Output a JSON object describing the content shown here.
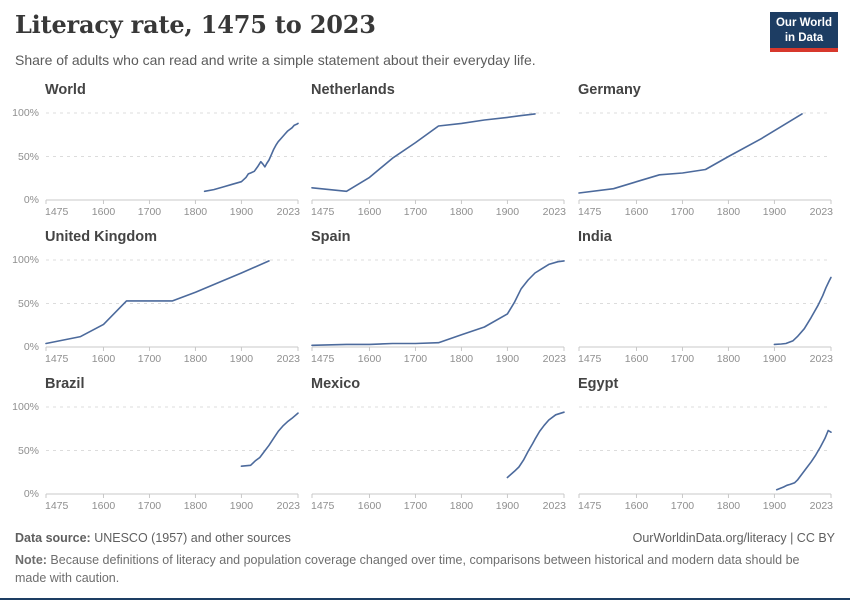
{
  "header": {
    "title": "Literacy rate, 1475 to 2023",
    "subtitle": "Share of adults who can read and write a simple statement about their everyday life.",
    "logo": {
      "line1": "Our World",
      "line2": "in Data"
    }
  },
  "colors": {
    "line": "#4c6a9c",
    "gridline": "#dcdcdc",
    "axis": "#c8c8c8",
    "tick_text": "#8f8f8f",
    "logo_background": "#1d3d63",
    "logo_accent": "#d7382c",
    "bottom_bar": "#1d3d63"
  },
  "chart_data": {
    "type": "line",
    "title": "Literacy rate, 1475 to 2023",
    "x_range": [
      1475,
      2023
    ],
    "x_ticks": [
      1475,
      1600,
      1700,
      1800,
      1900,
      2023
    ],
    "y_range": [
      0,
      100
    ],
    "y_ticks": [
      0,
      50,
      100
    ],
    "y_tick_format": "percent",
    "grid": "horizontal dashed gridlines at 50% and 100%, solid axis at 0%",
    "legend": "none (one facet per country)",
    "units": "[year, literacy rate %]",
    "series": [
      {
        "name": "World",
        "points": [
          [
            1820,
            10
          ],
          [
            1840,
            12
          ],
          [
            1860,
            15
          ],
          [
            1880,
            18
          ],
          [
            1900,
            21
          ],
          [
            1910,
            26
          ],
          [
            1915,
            30
          ],
          [
            1920,
            31
          ],
          [
            1928,
            33
          ],
          [
            1935,
            38
          ],
          [
            1942,
            44
          ],
          [
            1947,
            41
          ],
          [
            1951,
            38
          ],
          [
            1955,
            42
          ],
          [
            1960,
            46
          ],
          [
            1965,
            52
          ],
          [
            1970,
            58
          ],
          [
            1975,
            63
          ],
          [
            1980,
            67
          ],
          [
            1985,
            70
          ],
          [
            1990,
            73
          ],
          [
            1995,
            76
          ],
          [
            2000,
            79
          ],
          [
            2005,
            81
          ],
          [
            2010,
            83
          ],
          [
            2015,
            86
          ],
          [
            2020,
            87
          ],
          [
            2023,
            88
          ]
        ]
      },
      {
        "name": "Netherlands",
        "points": [
          [
            1475,
            14
          ],
          [
            1550,
            10
          ],
          [
            1600,
            26
          ],
          [
            1650,
            48
          ],
          [
            1700,
            66
          ],
          [
            1750,
            85
          ],
          [
            1800,
            88
          ],
          [
            1850,
            92
          ],
          [
            1900,
            95
          ],
          [
            1930,
            97
          ],
          [
            1960,
            99
          ]
        ]
      },
      {
        "name": "Germany",
        "points": [
          [
            1475,
            8
          ],
          [
            1550,
            13
          ],
          [
            1600,
            21
          ],
          [
            1650,
            29
          ],
          [
            1700,
            31
          ],
          [
            1750,
            35
          ],
          [
            1800,
            50
          ],
          [
            1870,
            70
          ],
          [
            1960,
            99
          ]
        ]
      },
      {
        "name": "United Kingdom",
        "points": [
          [
            1475,
            4
          ],
          [
            1550,
            12
          ],
          [
            1600,
            26
          ],
          [
            1650,
            53
          ],
          [
            1700,
            53
          ],
          [
            1750,
            53
          ],
          [
            1800,
            63
          ],
          [
            1850,
            74
          ],
          [
            1900,
            85
          ],
          [
            1960,
            99
          ]
        ]
      },
      {
        "name": "Spain",
        "points": [
          [
            1475,
            2
          ],
          [
            1550,
            3
          ],
          [
            1600,
            3
          ],
          [
            1650,
            4
          ],
          [
            1700,
            4
          ],
          [
            1750,
            5
          ],
          [
            1800,
            14
          ],
          [
            1850,
            23
          ],
          [
            1900,
            38
          ],
          [
            1915,
            51
          ],
          [
            1930,
            67
          ],
          [
            1945,
            77
          ],
          [
            1960,
            85
          ],
          [
            1975,
            90
          ],
          [
            1990,
            95
          ],
          [
            2010,
            98
          ],
          [
            2023,
            99
          ]
        ]
      },
      {
        "name": "India",
        "points": [
          [
            1900,
            3
          ],
          [
            1915,
            3.5
          ],
          [
            1925,
            4
          ],
          [
            1940,
            7
          ],
          [
            1950,
            12
          ],
          [
            1965,
            21
          ],
          [
            1980,
            34
          ],
          [
            1995,
            48
          ],
          [
            2005,
            59
          ],
          [
            2012,
            68
          ],
          [
            2019,
            76
          ],
          [
            2023,
            80
          ]
        ]
      },
      {
        "name": "Brazil",
        "points": [
          [
            1900,
            32
          ],
          [
            1920,
            33
          ],
          [
            1930,
            38
          ],
          [
            1940,
            42
          ],
          [
            1950,
            49
          ],
          [
            1960,
            56
          ],
          [
            1970,
            64
          ],
          [
            1980,
            72
          ],
          [
            1990,
            78
          ],
          [
            2000,
            83
          ],
          [
            2010,
            87
          ],
          [
            2023,
            93
          ]
        ]
      },
      {
        "name": "Mexico",
        "points": [
          [
            1900,
            19
          ],
          [
            1915,
            26
          ],
          [
            1925,
            31
          ],
          [
            1935,
            39
          ],
          [
            1945,
            49
          ],
          [
            1955,
            58
          ],
          [
            1960,
            63
          ],
          [
            1970,
            72
          ],
          [
            1980,
            79
          ],
          [
            1990,
            85
          ],
          [
            2005,
            91
          ],
          [
            2023,
            94
          ]
        ]
      },
      {
        "name": "Egypt",
        "points": [
          [
            1905,
            5
          ],
          [
            1920,
            8
          ],
          [
            1927,
            10
          ],
          [
            1934,
            11
          ],
          [
            1944,
            13
          ],
          [
            1950,
            16
          ],
          [
            1960,
            23
          ],
          [
            1970,
            30
          ],
          [
            1980,
            37
          ],
          [
            1990,
            45
          ],
          [
            2000,
            54
          ],
          [
            2010,
            64
          ],
          [
            2017,
            73
          ],
          [
            2023,
            71
          ]
        ]
      }
    ]
  },
  "footer": {
    "source_label": "Data source:",
    "source_value": " UNESCO (1957) and other sources",
    "link": "OurWorldinData.org/literacy | CC BY",
    "note_label": "Note:",
    "note_value": " Because definitions of literacy and population coverage changed over time, comparisons between historical and modern data should be made with caution."
  }
}
